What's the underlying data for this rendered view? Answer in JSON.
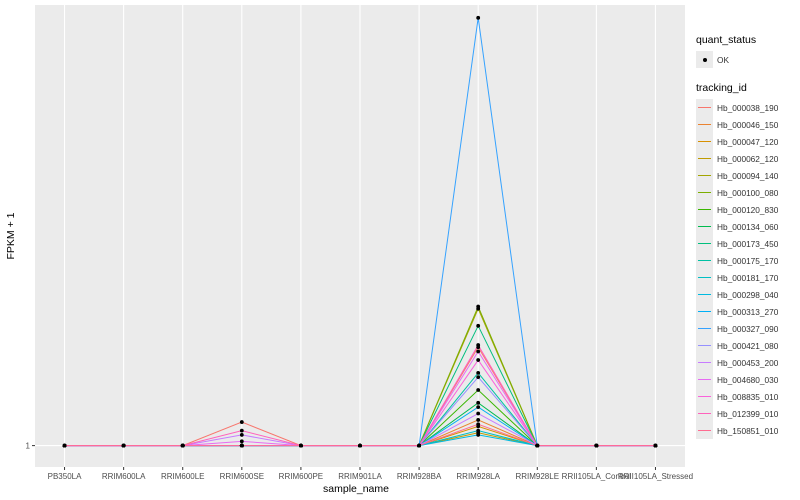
{
  "chart_data": {
    "type": "line",
    "xlabel": "sample_name",
    "ylabel": "FPKM + 1",
    "y_tick_labels": [
      "1"
    ],
    "grid": true,
    "legend_placement": "right",
    "categories": [
      "PB350LA",
      "RRIM600LA",
      "RRIM600LE",
      "RRIM600SE",
      "RRIM600PE",
      "RRIM901LA",
      "RRIM928BA",
      "RRIM928LA",
      "RRIM928LE",
      "RRII105LA_Control",
      "RRII105LA_Stressed"
    ],
    "y_range": [
      -0.5,
      10.3
    ],
    "quant_status": {
      "title": "quant_status",
      "entries": [
        {
          "label": "OK",
          "marker": "point"
        }
      ]
    },
    "tracking_title": "tracking_id",
    "series": [
      {
        "name": "Hb_000038_190",
        "color": "#F8766D",
        "values": [
          0,
          0,
          0,
          0.55,
          0,
          0,
          0,
          2.3,
          0,
          0,
          0
        ]
      },
      {
        "name": "Hb_000046_150",
        "color": "#EA8331",
        "values": [
          0,
          0,
          0,
          0,
          0,
          0,
          0,
          0.6,
          0,
          0,
          0
        ]
      },
      {
        "name": "Hb_000047_120",
        "color": "#D89000",
        "values": [
          0,
          0,
          0,
          0,
          0,
          0,
          0,
          0.45,
          0,
          0,
          0
        ]
      },
      {
        "name": "Hb_000062_120",
        "color": "#C09B00",
        "values": [
          0,
          0,
          0,
          0,
          0,
          0,
          0,
          0.3,
          0,
          0,
          0
        ]
      },
      {
        "name": "Hb_000094_140",
        "color": "#A3A500",
        "values": [
          0,
          0,
          0,
          0,
          0,
          0,
          0,
          3.2,
          0,
          0,
          0
        ]
      },
      {
        "name": "Hb_000100_080",
        "color": "#7CAE00",
        "values": [
          0,
          0,
          0,
          0,
          0,
          0,
          0,
          3.25,
          0,
          0,
          0
        ]
      },
      {
        "name": "Hb_000120_830",
        "color": "#39B600",
        "values": [
          0,
          0,
          0,
          0,
          0,
          0,
          0,
          1.3,
          0,
          0,
          0
        ]
      },
      {
        "name": "Hb_000134_060",
        "color": "#00BB4E",
        "values": [
          0,
          0,
          0,
          0,
          0,
          0,
          0,
          1.0,
          0,
          0,
          0
        ]
      },
      {
        "name": "Hb_000173_450",
        "color": "#00BF7D",
        "values": [
          0,
          0,
          0,
          0,
          0,
          0,
          0,
          2.8,
          0,
          0,
          0
        ]
      },
      {
        "name": "Hb_000175_170",
        "color": "#00C1A3",
        "values": [
          0,
          0,
          0,
          0,
          0,
          0,
          0,
          1.7,
          0,
          0,
          0
        ]
      },
      {
        "name": "Hb_000181_170",
        "color": "#00BFC4",
        "values": [
          0,
          0,
          0,
          0,
          0,
          0,
          0,
          0.35,
          0,
          0,
          0
        ]
      },
      {
        "name": "Hb_000298_040",
        "color": "#00BAE0",
        "values": [
          0,
          0,
          0,
          0,
          0,
          0,
          0,
          0.25,
          0,
          0,
          0
        ]
      },
      {
        "name": "Hb_000313_270",
        "color": "#00B0F6",
        "values": [
          0,
          0,
          0,
          0,
          0,
          0,
          0,
          0.9,
          0,
          0,
          0
        ]
      },
      {
        "name": "Hb_000327_090",
        "color": "#35A2FF",
        "values": [
          0,
          0,
          0,
          0,
          0,
          0,
          0,
          10.0,
          0,
          0,
          0
        ]
      },
      {
        "name": "Hb_000421_080",
        "color": "#9590FF",
        "values": [
          0,
          0,
          0,
          0,
          0,
          0,
          0,
          1.6,
          0,
          0,
          0
        ]
      },
      {
        "name": "Hb_000453_200",
        "color": "#C77CFF",
        "values": [
          0,
          0,
          0,
          0.25,
          0,
          0,
          0,
          0.75,
          0,
          0,
          0
        ]
      },
      {
        "name": "Hb_004680_030",
        "color": "#E76BF3",
        "values": [
          0,
          0,
          0,
          0.1,
          0,
          0,
          0,
          2.2,
          0,
          0,
          0
        ]
      },
      {
        "name": "Hb_008835_010",
        "color": "#FA62DB",
        "values": [
          0,
          0,
          0,
          0,
          0,
          0,
          0,
          2.0,
          0,
          0,
          0
        ]
      },
      {
        "name": "Hb_012399_010",
        "color": "#FF62BC",
        "values": [
          0,
          0,
          0,
          0.35,
          0,
          0,
          0,
          2.35,
          0,
          0,
          0
        ]
      },
      {
        "name": "Hb_150851_010",
        "color": "#FF6C91",
        "values": [
          0,
          0,
          0,
          0,
          0,
          0,
          0,
          0.5,
          0,
          0,
          0
        ]
      }
    ]
  },
  "colors": {
    "panel_bg": "#ebebeb",
    "grid": "#ffffff",
    "point": "#000000"
  }
}
